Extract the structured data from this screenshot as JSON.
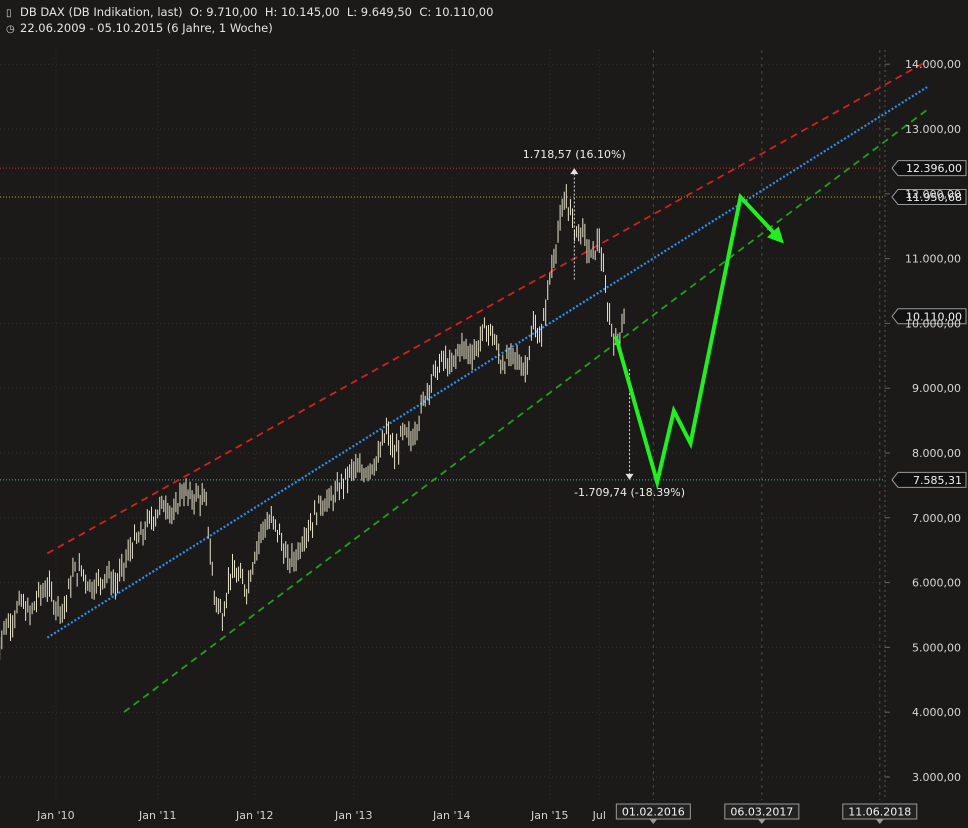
{
  "header": {
    "instrument": "DB DAX (DB Indikation, last)",
    "open": "O: 9.710,00",
    "high": "H: 10.145,00",
    "low": "L: 9.649,50",
    "close": "C: 10.110,00",
    "range": "22.06.2009 - 05.10.2015 (6 Jahre, 1 Woche)"
  },
  "colors": {
    "background": "#1b1a18",
    "candles": "#e8e4cc",
    "upper_channel": "#d42020",
    "mid_channel": "#2f8ff0",
    "lower_channel": "#1fa01f",
    "forecast": "#22ee22",
    "level_12396": "#c83232",
    "level_11950": "#b8b030",
    "level_7585": "#3fb8a8"
  },
  "chart_data": {
    "type": "line",
    "ylim": [
      2800,
      14500
    ],
    "y_ticks": [
      3000,
      4000,
      5000,
      6000,
      7000,
      8000,
      9000,
      10000,
      11000,
      12000,
      13000,
      14000
    ],
    "y_tick_labels": [
      "3.000,00",
      "4.000,00",
      "5.000,00",
      "6.000,00",
      "7.000,00",
      "8.000,00",
      "9.000,00",
      "10.000,00",
      "11.000,00",
      "12.000,00",
      "13.000,00",
      "14.000,00"
    ],
    "x_labels": [
      "Jan '10",
      "Jan '11",
      "Jan '12",
      "Jan '13",
      "Jan '14",
      "Jan '15",
      "Jul"
    ],
    "x_label_dates": [
      "2010-01",
      "2011-01",
      "2012-01",
      "2013-01",
      "2014-01",
      "2015-01",
      "2015-07"
    ],
    "future_labels": [
      "01.02.2016",
      "06.03.2017",
      "11.06.2018"
    ],
    "future_dates": [
      "2016-02-01",
      "2017-03-06",
      "2018-06-11"
    ],
    "series": [
      {
        "name": "DB DAX",
        "style": "bars",
        "points": [
          [
            "2009-06",
            4800
          ],
          [
            "2009-07",
            5300
          ],
          [
            "2009-08",
            5450
          ],
          [
            "2009-09",
            5700
          ],
          [
            "2009-10",
            5500
          ],
          [
            "2009-11",
            5800
          ],
          [
            "2009-12",
            5950
          ],
          [
            "2010-01",
            5650
          ],
          [
            "2010-02",
            5600
          ],
          [
            "2010-03",
            6150
          ],
          [
            "2010-04",
            6200
          ],
          [
            "2010-05",
            5950
          ],
          [
            "2010-06",
            6000
          ],
          [
            "2010-07",
            6150
          ],
          [
            "2010-08",
            5950
          ],
          [
            "2010-09",
            6250
          ],
          [
            "2010-10",
            6600
          ],
          [
            "2010-11",
            6700
          ],
          [
            "2010-12",
            6950
          ],
          [
            "2011-01",
            7100
          ],
          [
            "2011-02",
            7250
          ],
          [
            "2011-03",
            7000
          ],
          [
            "2011-04",
            7450
          ],
          [
            "2011-05",
            7300
          ],
          [
            "2011-06",
            7350
          ],
          [
            "2011-07",
            7200
          ],
          [
            "2011-08",
            5800
          ],
          [
            "2011-09",
            5500
          ],
          [
            "2011-10",
            6150
          ],
          [
            "2011-11",
            6100
          ],
          [
            "2011-12",
            5900
          ],
          [
            "2012-01",
            6450
          ],
          [
            "2012-02",
            6850
          ],
          [
            "2012-03",
            6950
          ],
          [
            "2012-04",
            6750
          ],
          [
            "2012-05",
            6300
          ],
          [
            "2012-06",
            6400
          ],
          [
            "2012-07",
            6750
          ],
          [
            "2012-08",
            6950
          ],
          [
            "2012-09",
            7250
          ],
          [
            "2012-10",
            7250
          ],
          [
            "2012-11",
            7400
          ],
          [
            "2012-12",
            7600
          ],
          [
            "2013-01",
            7750
          ],
          [
            "2013-02",
            7700
          ],
          [
            "2013-03",
            7800
          ],
          [
            "2013-04",
            7900
          ],
          [
            "2013-05",
            8350
          ],
          [
            "2013-06",
            7950
          ],
          [
            "2013-07",
            8300
          ],
          [
            "2013-08",
            8200
          ],
          [
            "2013-09",
            8550
          ],
          [
            "2013-10",
            9000
          ],
          [
            "2013-11",
            9250
          ],
          [
            "2013-12",
            9450
          ],
          [
            "2014-01",
            9300
          ],
          [
            "2014-02",
            9650
          ],
          [
            "2014-03",
            9550
          ],
          [
            "2014-04",
            9600
          ],
          [
            "2014-05",
            9900
          ],
          [
            "2014-06",
            9850
          ],
          [
            "2014-07",
            9400
          ],
          [
            "2014-08",
            9450
          ],
          [
            "2014-09",
            9450
          ],
          [
            "2014-10",
            9300
          ],
          [
            "2014-11",
            9950
          ],
          [
            "2014-12",
            9800
          ],
          [
            "2015-01",
            10700
          ],
          [
            "2015-02",
            11400
          ],
          [
            "2015-03",
            11950
          ],
          [
            "2015-04",
            11450
          ],
          [
            "2015-05",
            11400
          ],
          [
            "2015-06",
            11000
          ],
          [
            "2015-07",
            11300
          ],
          [
            "2015-08",
            10250
          ],
          [
            "2015-09",
            9650
          ],
          [
            "2015-10",
            10110
          ]
        ]
      },
      {
        "name": "upper channel",
        "style": "dashed",
        "points": [
          [
            "2009-12",
            6450
          ],
          [
            "2018-12",
            14050
          ]
        ]
      },
      {
        "name": "mid channel",
        "style": "dotted",
        "points": [
          [
            "2009-12",
            5150
          ],
          [
            "2018-12",
            13650
          ]
        ]
      },
      {
        "name": "lower channel",
        "style": "dashed",
        "points": [
          [
            "2010-09",
            4000
          ],
          [
            "2018-12",
            13300
          ]
        ]
      },
      {
        "name": "forecast",
        "style": "arrow",
        "points": [
          [
            "2015-09",
            9800
          ],
          [
            "2016-02",
            7550
          ],
          [
            "2016-04",
            8650
          ],
          [
            "2016-06",
            8150
          ],
          [
            "2016-12",
            11950
          ],
          [
            "2017-05",
            11300
          ]
        ]
      }
    ],
    "horizontal_levels": [
      {
        "value": 12396,
        "label": "12.396,00"
      },
      {
        "value": 11950.68,
        "label": "11.950,68"
      },
      {
        "value": 10110,
        "label": "10.110,00"
      },
      {
        "value": 7585.31,
        "label": "7.585,31"
      }
    ],
    "annotations": [
      {
        "text": "1.718,57 (16.10%)",
        "x": "2015-03",
        "from": 10678,
        "to": 12396
      },
      {
        "text": "-1.709,74 (-18.39%)",
        "x": "2015-08",
        "from": 9295,
        "to": 7585.31
      }
    ]
  }
}
